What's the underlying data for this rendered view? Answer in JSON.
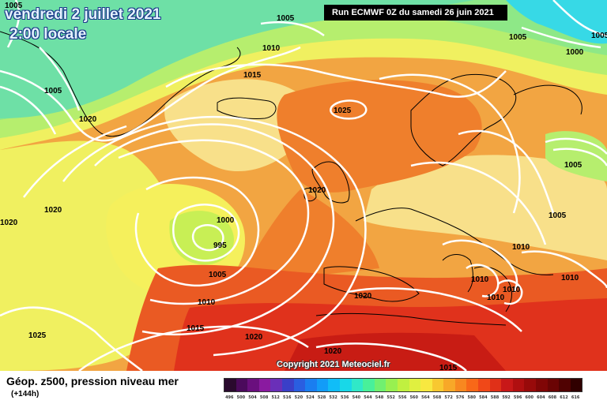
{
  "header": {
    "date": "vendredi 2 juillet 2021",
    "local_time": "2:00 locale",
    "run_info": "Run ECMWF 0Z du samedi 26 juin 2021"
  },
  "copyright": "Copyright 2021 Meteociel.fr",
  "legend": {
    "title": "Géop. z500, pression niveau mer",
    "subtitle": "(+144h)",
    "scale_values": [
      "496",
      "500",
      "504",
      "508",
      "512",
      "516",
      "520",
      "524",
      "528",
      "532",
      "536",
      "540",
      "544",
      "548",
      "552",
      "556",
      "560",
      "564",
      "568",
      "572",
      "576",
      "580",
      "584",
      "588",
      "592",
      "596",
      "600",
      "604",
      "608",
      "612",
      "616"
    ],
    "scale_colors": [
      "#2a0a2e",
      "#4b0a5c",
      "#6a0f7e",
      "#8a1aa0",
      "#6a2fb8",
      "#3a3fc8",
      "#2a5ee0",
      "#1a7ef0",
      "#129cf8",
      "#10bdf8",
      "#18d8e8",
      "#30e8c8",
      "#48f09a",
      "#70f070",
      "#98f050",
      "#c0f040",
      "#e0f040",
      "#f8e840",
      "#f8c830",
      "#f8a828",
      "#f88820",
      "#f86818",
      "#f04818",
      "#e03018",
      "#c81818",
      "#b00f10",
      "#980a0a",
      "#800606",
      "#6a0404",
      "#500202",
      "#300000"
    ],
    "colors": {
      "green": "#8ee887",
      "cyan": "#37d9e6",
      "yellow": "#f0f060",
      "light_yellow": "#f8e08a",
      "orange": "#f2a542",
      "deep_orange": "#ef7f2c",
      "red_orange": "#ea5a23",
      "red": "#e0321c",
      "dark_red": "#c81c14",
      "isobar": "#ffffff",
      "coast": "#000000"
    }
  },
  "isobars": [
    {
      "label": "1005"
    },
    {
      "label": "1010"
    },
    {
      "label": "1015"
    },
    {
      "label": "1020"
    },
    {
      "label": "1020"
    },
    {
      "label": "1025"
    },
    {
      "label": "1005"
    },
    {
      "label": "995"
    },
    {
      "label": "1000"
    },
    {
      "label": "1005"
    },
    {
      "label": "1010"
    },
    {
      "label": "1015"
    },
    {
      "label": "1020"
    },
    {
      "label": "1025"
    },
    {
      "label": "1020"
    },
    {
      "label": "1020"
    },
    {
      "label": "1020"
    },
    {
      "label": "1005"
    },
    {
      "label": "1000"
    },
    {
      "label": "1005"
    },
    {
      "label": "1005"
    },
    {
      "label": "1005"
    },
    {
      "label": "1010"
    },
    {
      "label": "1010"
    },
    {
      "label": "1010"
    },
    {
      "label": "1010"
    },
    {
      "label": "1010"
    },
    {
      "label": "1015"
    },
    {
      "label": "1015"
    },
    {
      "label": "1020"
    }
  ]
}
